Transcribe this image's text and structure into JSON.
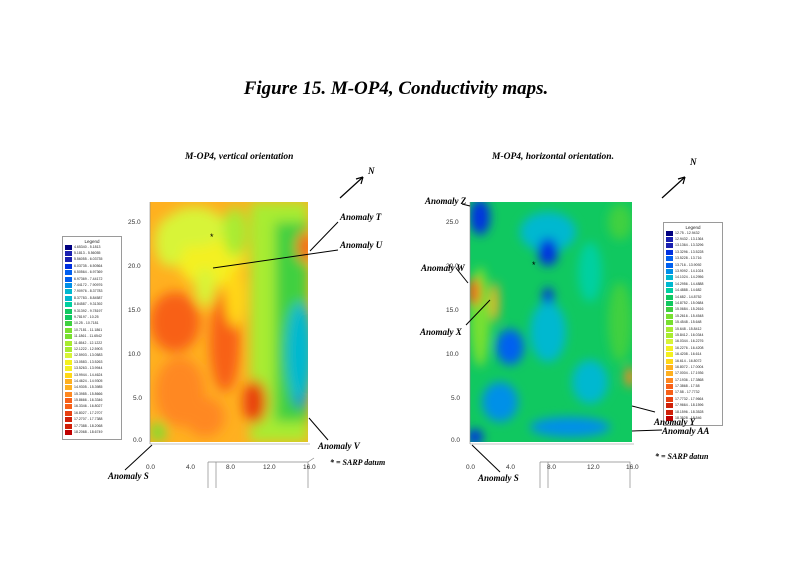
{
  "figure_title": "Figure 15. M-OP4, Conductivity maps.",
  "legend_title": "Legend",
  "north_label": "N",
  "datum_label": "* = SARP datum",
  "datum_label_right": "* = SARP datun",
  "colors": {
    "palette": [
      "#000080",
      "#1a20b0",
      "#0030e0",
      "#0060f0",
      "#0090e8",
      "#00b8d0",
      "#00d0a0",
      "#10c860",
      "#40d040",
      "#78e030",
      "#a8ec30",
      "#d8f438",
      "#f4f020",
      "#ffd818",
      "#ffb020",
      "#ff8820",
      "#f86018",
      "#e84010",
      "#d02008",
      "#c00000"
    ]
  },
  "left_map": {
    "title": "M-OP4,  vertical orientation",
    "y_ticks": [
      "0.0",
      "5.0",
      "10.0",
      "15.0",
      "20.0",
      "25.0"
    ],
    "x_ticks": [
      "0.0",
      "4.0",
      "8.0",
      "12.0",
      "16.0"
    ],
    "legend": [
      "4.65340 - 5.1813",
      "5.1813 - 5.56055",
      "5.56055 - 6.03735",
      "6.03735 - 6.50564",
      "6.50564 - 6.97369",
      "6.97369 - 7.44172",
      "7.44172 - 7.90976",
      "7.90976 - 8.37783",
      "8.37783 - 8.84587",
      "8.84587 - 9.31392",
      "9.31392 - 9.78197",
      "9.78197 - 10.25",
      "10.25 - 10.7181",
      "10.7181 - 11.1861",
      "11.1861 - 11.6542",
      "11.6542 - 12.1222",
      "12.1222 - 12.5903",
      "12.5903 - 13.0583",
      "13.0583 - 13.5263",
      "13.5263 - 13.9944",
      "13.9944 - 14.4624",
      "14.4624 - 14.9305",
      "14.9305 - 15.3985",
      "15.3985 - 15.8666",
      "15.8666 - 16.3346",
      "16.3346 - 16.8027",
      "16.8027 - 17.2707",
      "17.2707 - 17.7388",
      "17.7388 - 18.2068",
      "18.2068 - 18.6749"
    ],
    "anomalies": [
      "Anomaly T",
      "Anomaly U",
      "Anomaly V",
      "Anomaly S"
    ]
  },
  "right_map": {
    "title": "M-OP4,  horizontal orientation.",
    "y_ticks": [
      "0.0",
      "5.0",
      "10.0",
      "15.0",
      "20.0",
      "25.0"
    ],
    "x_ticks": [
      "0.0",
      "4.0",
      "8.0",
      "12.0",
      "16.0"
    ],
    "legend": [
      "12.75 - 12.9432",
      "12.9432 - 13.1364",
      "13.1364 - 13.3296",
      "13.3296 - 13.5228",
      "13.5228 - 13.716",
      "13.716 - 13.9092",
      "13.9092 - 14.1024",
      "14.1024 - 14.2956",
      "14.2956 - 14.4888",
      "14.4888 - 14.682",
      "14.682 - 14.8752",
      "14.8752 - 15.0684",
      "15.0684 - 15.2616",
      "15.2616 - 15.4548",
      "15.4548 - 15.648",
      "15.648 - 15.8412",
      "15.8412 - 16.0344",
      "16.0344 - 16.2276",
      "16.2276 - 16.4208",
      "16.4208 - 16.614",
      "16.614 - 16.8072",
      "16.8072 - 17.0004",
      "17.0004 - 17.1936",
      "17.1936 - 17.3868",
      "17.3868 - 17.58",
      "17.58 - 17.7732",
      "17.7732 - 17.9664",
      "17.9664 - 18.1596",
      "18.1596 - 18.3528",
      "18.3528 - 18.546"
    ],
    "anomalies": [
      "Anomaly Z",
      "Anomaly W",
      "Anomaly X",
      "Anomaly Y",
      "Anomaly AA",
      "Anomaly S"
    ]
  }
}
